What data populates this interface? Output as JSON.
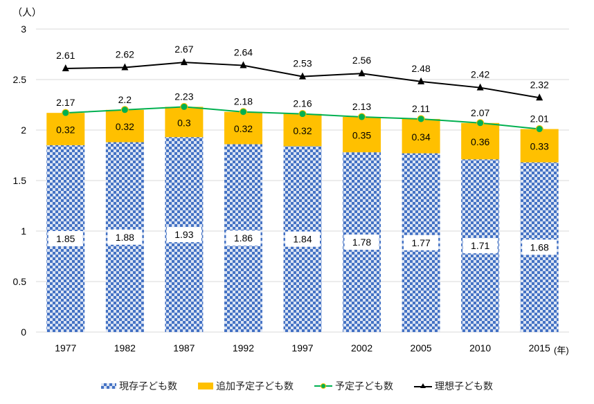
{
  "chart_data": {
    "type": "bar",
    "y_unit": "（人）",
    "x_unit": "(年)",
    "categories": [
      "1977",
      "1982",
      "1987",
      "1992",
      "1997",
      "2002",
      "2005",
      "2010",
      "2015"
    ],
    "ylim": [
      0,
      3
    ],
    "yticks": [
      "0",
      "0.5",
      "1",
      "1.5",
      "2",
      "2.5",
      "3"
    ],
    "grid": true,
    "legend_position": "bottom",
    "series": [
      {
        "name": "現存子ども数",
        "kind": "stacked-bar",
        "color": "#4472c4",
        "pattern": "checkerboard",
        "values": [
          1.85,
          1.88,
          1.93,
          1.86,
          1.84,
          1.78,
          1.77,
          1.71,
          1.68
        ]
      },
      {
        "name": "追加予定子ども数",
        "kind": "stacked-bar",
        "color": "#ffc000",
        "values": [
          0.32,
          0.32,
          0.3,
          0.32,
          0.32,
          0.35,
          0.34,
          0.36,
          0.33
        ]
      },
      {
        "name": "予定子ども数",
        "kind": "line",
        "color": "#00b050",
        "labels": [
          "2.17",
          "2.2",
          "2.23",
          "2.18",
          "2.16",
          "2.13",
          "2.11",
          "2.07",
          "2.01"
        ],
        "values": [
          2.17,
          2.2,
          2.23,
          2.18,
          2.16,
          2.13,
          2.11,
          2.07,
          2.01
        ]
      },
      {
        "name": "理想子ども数",
        "kind": "line",
        "color": "#000000",
        "labels": [
          "2.61",
          "2.62",
          "2.67",
          "2.64",
          "2.53",
          "2.56",
          "2.48",
          "2.42",
          "2.32"
        ],
        "values": [
          2.61,
          2.62,
          2.67,
          2.64,
          2.53,
          2.56,
          2.48,
          2.42,
          2.32
        ]
      }
    ]
  }
}
